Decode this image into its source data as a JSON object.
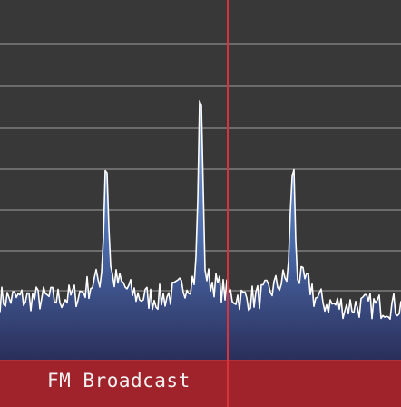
{
  "band": {
    "label": "FM Broadcast"
  },
  "colors": {
    "background": "#383838",
    "grid": "#8a8a8a",
    "trace": "#ffffff",
    "fill_top": "#5a7fc0",
    "fill_bottom": "#2a2f5a",
    "band_bar": "#a0232b",
    "tuner_line": "#d8333a"
  },
  "spectrum": {
    "peaks": [
      {
        "position": 0.265,
        "level": 0.52
      },
      {
        "position": 0.5,
        "level": 0.72
      },
      {
        "position": 0.73,
        "level": 0.51
      }
    ],
    "noise_floor": 0.17,
    "tuned_position": 0.566
  }
}
